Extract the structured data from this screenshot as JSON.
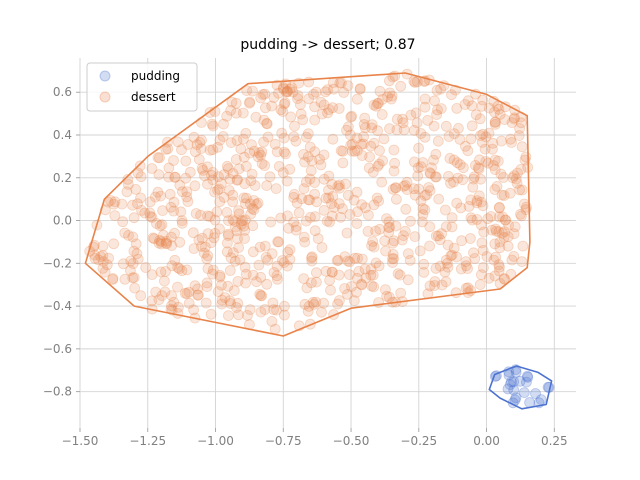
{
  "chart_data": {
    "type": "scatter",
    "title": "pudding -> dessert; 0.87",
    "xlim": [
      -1.5,
      0.33
    ],
    "ylim": [
      -0.97,
      0.76
    ],
    "xticks": [
      -1.5,
      -1.25,
      -1.0,
      -0.75,
      -0.5,
      -0.25,
      0.0,
      0.25
    ],
    "xtick_labels": [
      "−1.50",
      "−1.25",
      "−1.00",
      "−0.75",
      "−0.50",
      "−0.25",
      "0.00",
      "0.25"
    ],
    "yticks": [
      -0.8,
      -0.6,
      -0.4,
      -0.2,
      0.0,
      0.2,
      0.4,
      0.6
    ],
    "ytick_labels": [
      "−0.8",
      "−0.6",
      "−0.4",
      "−0.2",
      "0.0",
      "0.2",
      "0.4",
      "0.6"
    ],
    "grid": true,
    "legend_placement": "top-left",
    "series": [
      {
        "name": "pudding",
        "color": "#4c72d0",
        "marker_alpha": 0.25,
        "n_points": 25,
        "center": [
          0.14,
          -0.78
        ],
        "spread": [
          0.06,
          0.05
        ],
        "hull": [
          [
            0.03,
            -0.72
          ],
          [
            0.11,
            -0.68
          ],
          [
            0.19,
            -0.71
          ],
          [
            0.24,
            -0.75
          ],
          [
            0.22,
            -0.86
          ],
          [
            0.13,
            -0.88
          ],
          [
            0.05,
            -0.83
          ],
          [
            0.01,
            -0.79
          ]
        ]
      },
      {
        "name": "dessert",
        "color": "#e8834a",
        "marker_alpha": 0.2,
        "n_points": 900,
        "center": [
          -0.63,
          0.07
        ],
        "spread": [
          0.37,
          0.27
        ],
        "hull": [
          [
            -1.41,
            0.1
          ],
          [
            -1.25,
            0.3
          ],
          [
            -0.88,
            0.64
          ],
          [
            -0.3,
            0.69
          ],
          [
            0.0,
            0.59
          ],
          [
            0.15,
            0.49
          ],
          [
            0.16,
            -0.1
          ],
          [
            0.15,
            -0.22
          ],
          [
            0.05,
            -0.32
          ],
          [
            -0.5,
            -0.41
          ],
          [
            -0.75,
            -0.54
          ],
          [
            -1.3,
            -0.4
          ],
          [
            -1.48,
            -0.2
          ]
        ]
      }
    ]
  }
}
